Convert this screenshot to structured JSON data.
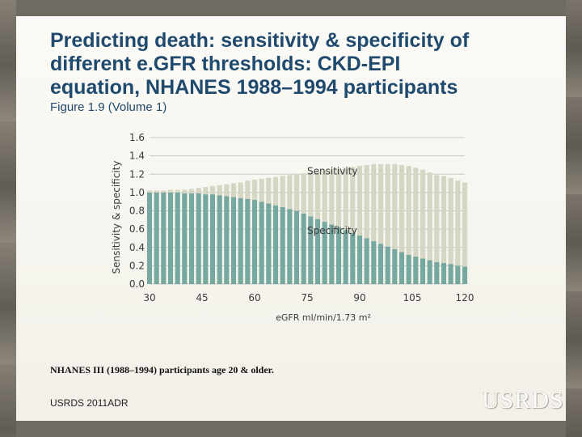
{
  "slide": {
    "title_lines": [
      "Predicting death: sensitivity & specificity of",
      "different e.GFR thresholds: CKD-EPI",
      "equation, NHANES 1988–1994 participants"
    ],
    "subtitle": "Figure 1.9 (Volume 1)",
    "footnote": "NHANES III (1988–1994) participants age 20 & older.",
    "source": "USRDS 2011ADR",
    "logo": "USRDS"
  },
  "colors": {
    "sensitivity": "#d5d6c4",
    "specificity": "#76a8a0",
    "axis_text": "#3a3a3a",
    "grid": "#c9c9c1"
  },
  "chart_data": {
    "type": "area",
    "title": "",
    "xlabel": "eGFR ml/min/1.73 m²",
    "ylabel": "Sensitivity & specificity",
    "xlim": [
      30,
      120
    ],
    "ylim": [
      0,
      1.6
    ],
    "xticks": [
      "30",
      "45",
      "60",
      "75",
      "90",
      "105",
      "120"
    ],
    "yticks": [
      "0.0",
      "0.2",
      "0.4",
      "0.6",
      "0.8",
      "1.0",
      "1.2",
      "1.4",
      "1.6"
    ],
    "x": [
      30,
      32,
      34,
      36,
      38,
      40,
      42,
      44,
      46,
      48,
      50,
      52,
      54,
      56,
      58,
      60,
      62,
      64,
      66,
      68,
      70,
      72,
      74,
      76,
      78,
      80,
      82,
      84,
      86,
      88,
      90,
      92,
      94,
      96,
      98,
      100,
      102,
      104,
      106,
      108,
      110,
      112,
      114,
      116,
      118,
      120
    ],
    "series": [
      {
        "name": "Specificity",
        "label": "Specificity",
        "values": [
          1.0,
          1.0,
          1.0,
          1.0,
          1.0,
          0.99,
          0.99,
          0.99,
          0.98,
          0.98,
          0.97,
          0.96,
          0.95,
          0.94,
          0.93,
          0.92,
          0.9,
          0.88,
          0.86,
          0.84,
          0.82,
          0.8,
          0.77,
          0.74,
          0.71,
          0.68,
          0.65,
          0.62,
          0.59,
          0.56,
          0.53,
          0.5,
          0.47,
          0.44,
          0.41,
          0.38,
          0.35,
          0.32,
          0.3,
          0.28,
          0.26,
          0.24,
          0.23,
          0.22,
          0.2,
          0.19
        ]
      },
      {
        "name": "Sensitivity",
        "label": "Sensitivity",
        "values": [
          0.02,
          0.02,
          0.02,
          0.03,
          0.03,
          0.04,
          0.05,
          0.06,
          0.08,
          0.09,
          0.11,
          0.13,
          0.15,
          0.17,
          0.2,
          0.22,
          0.25,
          0.28,
          0.31,
          0.34,
          0.37,
          0.4,
          0.44,
          0.48,
          0.52,
          0.56,
          0.6,
          0.64,
          0.68,
          0.72,
          0.76,
          0.8,
          0.84,
          0.87,
          0.9,
          0.93,
          0.95,
          0.97,
          0.97,
          0.97,
          0.96,
          0.95,
          0.95,
          0.94,
          0.93,
          0.92
        ]
      }
    ],
    "stacked": true
  }
}
